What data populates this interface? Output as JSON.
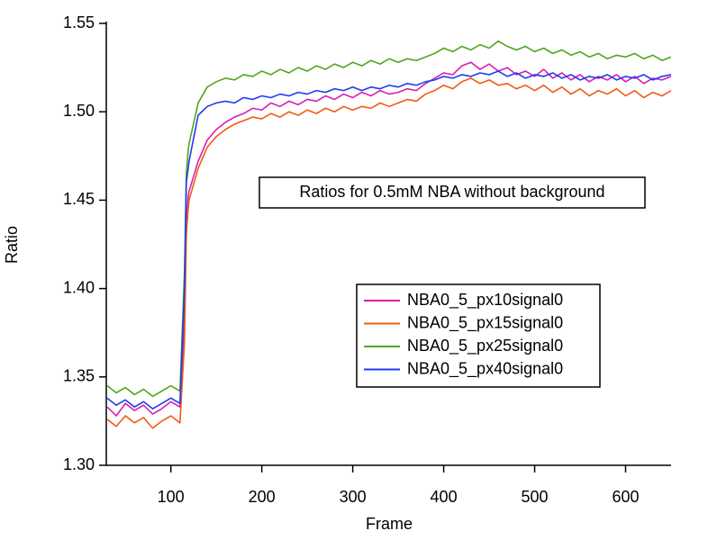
{
  "chart_data": {
    "type": "line",
    "annotation": "Ratios for 0.5mM NBA without background",
    "x_label": "Frame",
    "y_label": "Ratio",
    "xlim": [
      29,
      650
    ],
    "ylim": [
      1.3,
      1.55
    ],
    "xticks": [
      100,
      200,
      300,
      400,
      500,
      600
    ],
    "yticks": [
      {
        "value": 1.3,
        "label": "1.30"
      },
      1.35,
      {
        "value": 1.4,
        "label": "1.40"
      },
      1.45,
      {
        "value": 1.5,
        "label": "1.50"
      },
      1.55
    ],
    "legend": "right",
    "x": [
      30,
      40,
      50,
      60,
      70,
      80,
      90,
      100,
      110,
      115,
      117,
      119,
      120,
      130,
      140,
      150,
      160,
      170,
      180,
      190,
      200,
      210,
      220,
      230,
      240,
      250,
      260,
      270,
      280,
      290,
      300,
      310,
      320,
      330,
      340,
      350,
      360,
      370,
      380,
      390,
      400,
      410,
      420,
      430,
      440,
      450,
      460,
      470,
      480,
      490,
      500,
      510,
      520,
      530,
      540,
      550,
      560,
      570,
      580,
      590,
      600,
      610,
      620,
      630,
      640,
      650
    ],
    "series": [
      {
        "name": "NBA0_5_px10signal0",
        "color": "#d81eb4",
        "values": [
          1.333,
          1.328,
          1.335,
          1.331,
          1.334,
          1.329,
          1.332,
          1.336,
          1.333,
          1.385,
          1.438,
          1.452,
          1.455,
          1.472,
          1.484,
          1.49,
          1.494,
          1.497,
          1.499,
          1.502,
          1.501,
          1.505,
          1.503,
          1.506,
          1.504,
          1.507,
          1.506,
          1.509,
          1.507,
          1.51,
          1.508,
          1.511,
          1.509,
          1.512,
          1.51,
          1.511,
          1.513,
          1.512,
          1.516,
          1.519,
          1.522,
          1.521,
          1.526,
          1.528,
          1.524,
          1.527,
          1.523,
          1.525,
          1.521,
          1.523,
          1.52,
          1.524,
          1.519,
          1.522,
          1.518,
          1.521,
          1.517,
          1.52,
          1.518,
          1.521,
          1.517,
          1.52,
          1.516,
          1.519,
          1.518,
          1.52
        ]
      },
      {
        "name": "NBA0_5_px15signal0",
        "color": "#f05a14",
        "values": [
          1.326,
          1.322,
          1.328,
          1.324,
          1.327,
          1.321,
          1.325,
          1.328,
          1.324,
          1.37,
          1.43,
          1.445,
          1.45,
          1.468,
          1.48,
          1.486,
          1.49,
          1.493,
          1.495,
          1.497,
          1.496,
          1.499,
          1.497,
          1.5,
          1.498,
          1.501,
          1.499,
          1.502,
          1.5,
          1.503,
          1.501,
          1.503,
          1.502,
          1.505,
          1.503,
          1.505,
          1.507,
          1.506,
          1.51,
          1.512,
          1.515,
          1.513,
          1.517,
          1.519,
          1.516,
          1.518,
          1.515,
          1.516,
          1.513,
          1.515,
          1.512,
          1.515,
          1.511,
          1.514,
          1.51,
          1.513,
          1.509,
          1.512,
          1.51,
          1.513,
          1.509,
          1.512,
          1.508,
          1.511,
          1.509,
          1.512
        ]
      },
      {
        "name": "NBA0_5_px25signal0",
        "color": "#50a51e",
        "values": [
          1.345,
          1.341,
          1.344,
          1.34,
          1.343,
          1.339,
          1.342,
          1.345,
          1.342,
          1.41,
          1.465,
          1.478,
          1.482,
          1.505,
          1.514,
          1.517,
          1.519,
          1.518,
          1.521,
          1.52,
          1.523,
          1.521,
          1.524,
          1.522,
          1.525,
          1.523,
          1.526,
          1.524,
          1.527,
          1.525,
          1.528,
          1.526,
          1.529,
          1.527,
          1.53,
          1.528,
          1.53,
          1.529,
          1.531,
          1.533,
          1.536,
          1.534,
          1.537,
          1.535,
          1.538,
          1.536,
          1.54,
          1.537,
          1.535,
          1.537,
          1.534,
          1.536,
          1.533,
          1.535,
          1.532,
          1.534,
          1.531,
          1.533,
          1.53,
          1.532,
          1.531,
          1.533,
          1.53,
          1.532,
          1.529,
          1.531
        ]
      },
      {
        "name": "NBA0_5_px40signal0",
        "color": "#1e3cf0",
        "values": [
          1.338,
          1.334,
          1.337,
          1.333,
          1.336,
          1.332,
          1.335,
          1.338,
          1.335,
          1.4,
          1.46,
          1.468,
          1.472,
          1.498,
          1.503,
          1.505,
          1.506,
          1.505,
          1.508,
          1.507,
          1.509,
          1.508,
          1.51,
          1.509,
          1.511,
          1.51,
          1.512,
          1.511,
          1.513,
          1.512,
          1.514,
          1.512,
          1.514,
          1.513,
          1.515,
          1.514,
          1.516,
          1.515,
          1.517,
          1.518,
          1.52,
          1.519,
          1.521,
          1.52,
          1.522,
          1.521,
          1.523,
          1.52,
          1.522,
          1.519,
          1.521,
          1.52,
          1.522,
          1.519,
          1.521,
          1.518,
          1.52,
          1.519,
          1.521,
          1.518,
          1.52,
          1.519,
          1.521,
          1.518,
          1.52,
          1.521
        ]
      }
    ]
  }
}
